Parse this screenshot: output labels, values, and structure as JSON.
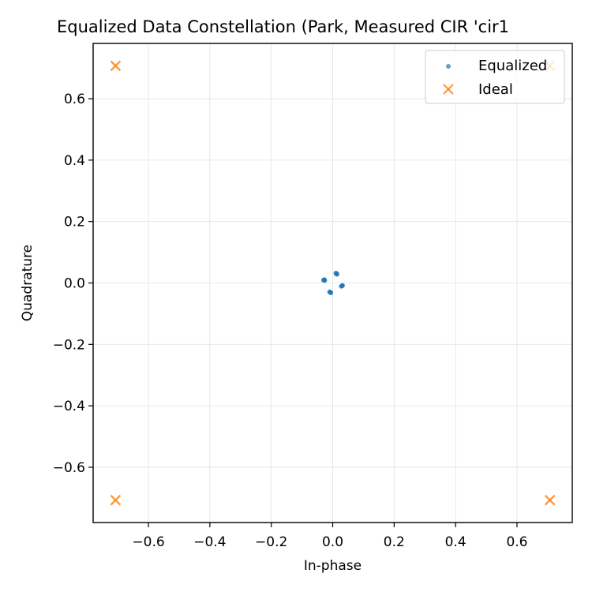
{
  "chart_data": {
    "type": "scatter",
    "title": "Equalized Data Constellation (Park, Measured CIR 'cir1",
    "xlabel": "In-phase",
    "ylabel": "Quadrature",
    "xlim": [
      -0.78,
      0.78
    ],
    "ylim": [
      -0.78,
      0.78
    ],
    "xticks": [
      -0.6,
      -0.4,
      -0.2,
      0.0,
      0.2,
      0.4,
      0.6
    ],
    "yticks": [
      -0.6,
      -0.4,
      -0.2,
      0.0,
      0.2,
      0.4,
      0.6
    ],
    "xtick_labels": [
      "−0.6",
      "−0.4",
      "−0.2",
      "0.0",
      "0.2",
      "0.4",
      "0.6"
    ],
    "ytick_labels": [
      "−0.6",
      "−0.4",
      "−0.2",
      "0.0",
      "0.2",
      "0.4",
      "0.6"
    ],
    "grid": true,
    "legend_position": "top-right",
    "series": [
      {
        "name": "Equalized",
        "marker": "dot",
        "color": "#1f77b4",
        "points": [
          [
            0.012,
            0.03
          ],
          [
            0.014,
            0.028
          ],
          [
            0.01,
            0.032
          ],
          [
            0.013,
            0.031
          ],
          [
            -0.028,
            0.01
          ],
          [
            -0.026,
            0.008
          ],
          [
            -0.03,
            0.009
          ],
          [
            -0.027,
            0.011
          ],
          [
            -0.008,
            -0.03
          ],
          [
            -0.006,
            -0.032
          ],
          [
            -0.01,
            -0.029
          ],
          [
            -0.007,
            -0.031
          ],
          [
            0.03,
            -0.01
          ],
          [
            0.032,
            -0.008
          ],
          [
            0.028,
            -0.011
          ],
          [
            0.031,
            -0.009
          ]
        ]
      },
      {
        "name": "Ideal",
        "marker": "x",
        "color": "#ff7f0e",
        "points": [
          [
            -0.7071,
            0.7071
          ],
          [
            0.7071,
            0.7071
          ],
          [
            -0.7071,
            -0.7071
          ],
          [
            0.7071,
            -0.7071
          ]
        ]
      }
    ]
  }
}
